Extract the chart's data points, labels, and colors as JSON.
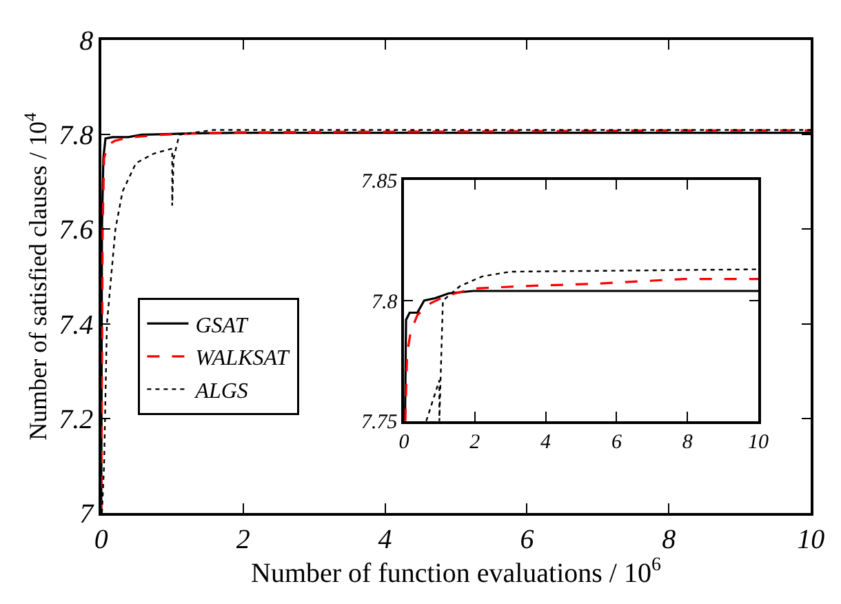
{
  "chart_data": [
    {
      "type": "line",
      "xlabel": "Number of function evaluations / 10$^{6}$",
      "ylabel": "Number of satisfied clauses / 10$^{4}$",
      "xlim": [
        0,
        10
      ],
      "ylim": [
        7,
        8
      ],
      "xticks": [
        0,
        2,
        4,
        6,
        8,
        10
      ],
      "yticks": [
        7,
        7.2,
        7.4,
        7.6,
        7.8,
        8
      ],
      "legend": "bottom left",
      "marker": "none",
      "series": [
        {
          "name": "GSAT",
          "color": "#000000",
          "line_style": "solid",
          "x": [
            0,
            0.01,
            0.03,
            0.06,
            0.16,
            0.38,
            0.57,
            0.88,
            1.26,
            1.95,
            10
          ],
          "values": [
            7.0,
            7.6,
            7.75,
            7.792,
            7.795,
            7.795,
            7.8,
            7.801,
            7.803,
            7.804,
            7.804
          ]
        },
        {
          "name": "WALKSAT",
          "color": "#ff0000",
          "line_style": "dashed",
          "x": [
            0,
            0.02,
            0.04,
            0.09,
            0.19,
            0.38,
            0.76,
            1.2,
            1.95,
            3.3,
            5.4,
            7.9,
            10
          ],
          "values": [
            7.0,
            7.6,
            7.75,
            7.778,
            7.787,
            7.794,
            7.799,
            7.802,
            7.805,
            7.806,
            7.807,
            7.809,
            7.809
          ]
        },
        {
          "name": "ALGS",
          "color": "#000000",
          "line_style": "dotted",
          "x": [
            0.01,
            0.04,
            0.08,
            0.2,
            0.3,
            0.49,
            0.74,
            0.98,
            1.0,
            1.0,
            1.02,
            1.1,
            1.58,
            2.2,
            3.0,
            10
          ],
          "values": [
            7.0,
            7.1,
            7.4,
            7.6,
            7.68,
            7.74,
            7.76,
            7.77,
            7.77,
            7.65,
            7.75,
            7.8,
            7.81,
            7.81,
            7.81,
            7.81
          ]
        }
      ]
    },
    {
      "type": "line",
      "xlim": [
        0,
        10
      ],
      "ylim": [
        7.75,
        7.85
      ],
      "xticks": [
        0,
        2,
        4,
        6,
        8,
        10
      ],
      "yticks": [
        7.75,
        7.8,
        7.85
      ],
      "legend": false,
      "marker": "none",
      "series": [
        {
          "color": "#000000",
          "line_style": "solid",
          "x": [
            0.03,
            0.06,
            0.16,
            0.38,
            0.57,
            0.88,
            1.26,
            1.95,
            10
          ],
          "values": [
            7.75,
            7.792,
            7.795,
            7.795,
            7.8,
            7.801,
            7.803,
            7.804,
            7.804
          ]
        },
        {
          "color": "#ff0000",
          "line_style": "dashed",
          "x": [
            0.04,
            0.09,
            0.19,
            0.38,
            0.76,
            1.2,
            1.95,
            3.3,
            5.4,
            7.9,
            10
          ],
          "values": [
            7.75,
            7.778,
            7.787,
            7.794,
            7.799,
            7.802,
            7.805,
            7.806,
            7.807,
            7.809,
            7.809
          ]
        },
        {
          "color": "#000000",
          "line_style": "dotted",
          "x": [
            0.63,
            1.0,
            1.0,
            1.1,
            1.58,
            2.2,
            3.0,
            10
          ],
          "values": [
            7.75,
            7.767,
            7.75,
            7.8,
            7.806,
            7.81,
            7.812,
            7.813
          ]
        }
      ]
    }
  ]
}
